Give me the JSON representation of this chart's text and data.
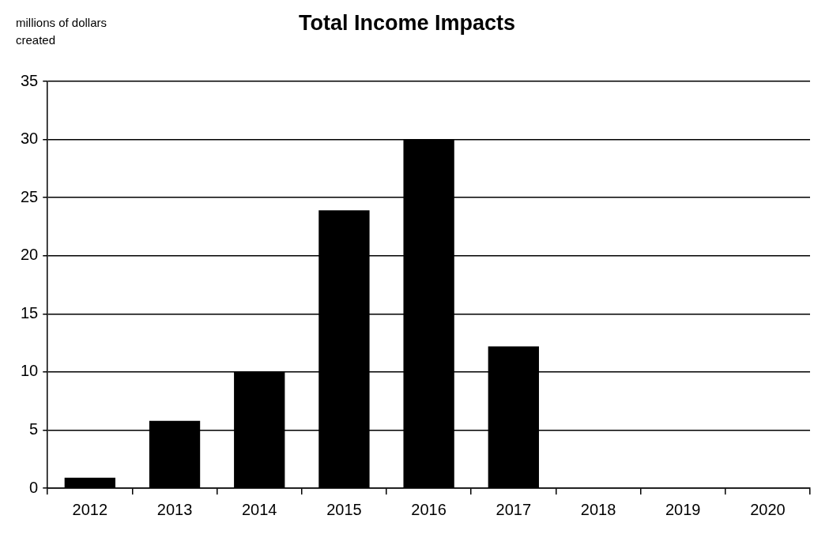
{
  "chart_data": {
    "type": "bar",
    "title": "Total Income Impacts",
    "ylabel": "millions of dollars created",
    "categories": [
      "2012",
      "2013",
      "2014",
      "2015",
      "2016",
      "2017",
      "2018",
      "2019",
      "2020"
    ],
    "values": [
      0.9,
      5.8,
      10,
      23.9,
      30,
      12.2,
      0,
      0,
      0
    ],
    "color": "#000000",
    "ylim": [
      0,
      35
    ],
    "yticks": [
      0,
      5,
      10,
      15,
      20,
      25,
      30,
      35
    ],
    "grid": "y",
    "legend": false
  }
}
